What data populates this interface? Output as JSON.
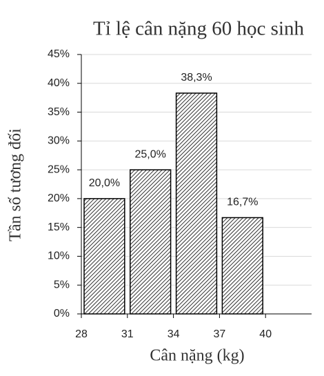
{
  "chart_data": {
    "type": "histogram",
    "title": "Tỉ lệ cân nặng 60 học sinh",
    "x_label": "Cân nặng (kg)",
    "y_label": "Tần số tương đối",
    "bins": [
      28,
      31,
      34,
      37,
      40
    ],
    "values": [
      20,
      25,
      38.3,
      16.7
    ],
    "value_labels": [
      "20,0%",
      "25,0%",
      "38,3%",
      "16,7%"
    ],
    "xlim": [
      28,
      43
    ],
    "xticks": [
      28,
      31,
      34,
      37,
      40
    ],
    "ylim": [
      0,
      45
    ],
    "yticks": [
      {
        "value": 0,
        "label": "0%"
      },
      {
        "value": 5,
        "label": "5%"
      },
      {
        "value": 10,
        "label": "10%"
      },
      {
        "value": 15,
        "label": "15%"
      },
      {
        "value": 20,
        "label": "20%"
      },
      {
        "value": 25,
        "label": "25%"
      },
      {
        "value": 30,
        "label": "30%"
      },
      {
        "value": 35,
        "label": "35%"
      },
      {
        "value": 40,
        "label": "40%"
      },
      {
        "value": 45,
        "label": "45%"
      }
    ],
    "grid": true,
    "color": "#000000"
  }
}
